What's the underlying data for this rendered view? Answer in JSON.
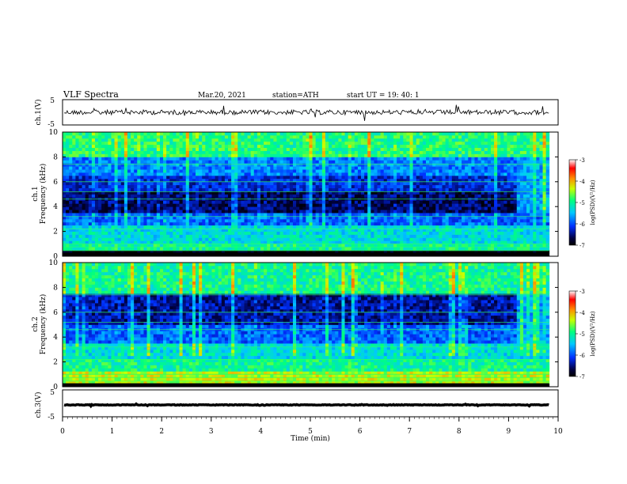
{
  "header": {
    "title": "VLF  Spectra",
    "date": "Mar.20, 2021",
    "station": "station=ATH",
    "start": "start  UT  =    19: 40: 1"
  },
  "chart_data": [
    {
      "type": "line",
      "name": "ch1-waveform",
      "ylabel": "ch.1(V)",
      "ylim": [
        -5,
        5
      ],
      "y_ticks": [
        "5",
        "-5"
      ],
      "xlim": [
        0,
        10
      ],
      "trace_end_min": 9.82,
      "mean_level": 0
    },
    {
      "type": "heatmap",
      "name": "ch1-spectrogram",
      "ylabel": "ch.1\nFrequency  (kHz)",
      "ylim": [
        0,
        10
      ],
      "y_ticks": [
        "0",
        "2",
        "4",
        "6",
        "8",
        "10"
      ],
      "xlim": [
        0,
        10
      ],
      "data_end_min": 9.82,
      "change_time_min": 9.1,
      "colorbar": {
        "label": "log(PSD)(V²/Hz)",
        "range": [
          -7,
          -3
        ],
        "ticks": [
          "-3",
          "-4",
          "-5",
          "-6",
          "-7"
        ]
      },
      "bands": [
        {
          "from_khz": 0.0,
          "to_khz": 0.4,
          "level": -7
        },
        {
          "from_khz": 0.4,
          "to_khz": 1.0,
          "level": -5.0
        },
        {
          "from_khz": 1.0,
          "to_khz": 2.6,
          "level": -5.3
        },
        {
          "from_khz": 2.6,
          "to_khz": 3.6,
          "level": -5.9
        },
        {
          "from_khz": 3.6,
          "to_khz": 5.2,
          "level": -6.6
        },
        {
          "from_khz": 5.2,
          "to_khz": 6.4,
          "level": -6.2
        },
        {
          "from_khz": 6.4,
          "to_khz": 8.0,
          "level": -5.8
        },
        {
          "from_khz": 8.0,
          "to_khz": 10.0,
          "level": -4.9
        }
      ]
    },
    {
      "type": "heatmap",
      "name": "ch2-spectrogram",
      "ylabel": "ch.2\nFrequency  (kHz)",
      "ylim": [
        0,
        10
      ],
      "y_ticks": [
        "0",
        "2",
        "4",
        "6",
        "8",
        "10"
      ],
      "xlim": [
        0,
        10
      ],
      "data_end_min": 9.82,
      "change_time_min": 9.1,
      "colorbar": {
        "label": "log(PSD)(V²/Hz)",
        "range": [
          -7,
          -3
        ],
        "ticks": [
          "-3",
          "-4",
          "-5",
          "-6",
          "-7"
        ]
      },
      "bands": [
        {
          "from_khz": 0.0,
          "to_khz": 0.3,
          "level": -7
        },
        {
          "from_khz": 0.3,
          "to_khz": 1.2,
          "level": -4.4
        },
        {
          "from_khz": 1.2,
          "to_khz": 2.2,
          "level": -5.0
        },
        {
          "from_khz": 2.2,
          "to_khz": 3.6,
          "level": -5.3
        },
        {
          "from_khz": 3.6,
          "to_khz": 5.0,
          "level": -5.9
        },
        {
          "from_khz": 5.0,
          "to_khz": 7.6,
          "level": -6.4
        },
        {
          "from_khz": 7.6,
          "to_khz": 10.0,
          "level": -5.0
        }
      ]
    },
    {
      "type": "line",
      "name": "ch3-waveform",
      "ylabel": "ch.3(V)",
      "ylim": [
        -5,
        5
      ],
      "y_ticks": [
        "5",
        "-5"
      ],
      "xlim": [
        0,
        10
      ],
      "trace_end_min": 9.82,
      "mean_level": 0
    }
  ],
  "x_axis": {
    "label": "Time  (min)",
    "ticks": [
      "0",
      "1",
      "2",
      "3",
      "4",
      "5",
      "6",
      "7",
      "8",
      "9",
      "10"
    ]
  }
}
